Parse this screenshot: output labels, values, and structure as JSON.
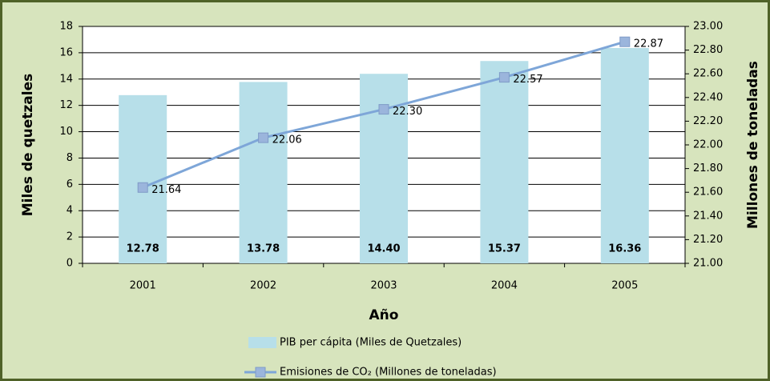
{
  "chart_data": {
    "type": "bar_line",
    "categories": [
      "2001",
      "2002",
      "2003",
      "2004",
      "2005"
    ],
    "series": [
      {
        "name": "PIB per cápita (Miles de Quetzales)",
        "type": "bar",
        "color": "#b7dfe9",
        "values": [
          12.78,
          13.78,
          14.4,
          15.37,
          16.36
        ],
        "value_labels": [
          "12.78",
          "13.78",
          "14.40",
          "15.37",
          "16.36"
        ]
      },
      {
        "name": "Emisiones de CO₂ (Millones de toneladas)",
        "type": "line",
        "axis": "y2",
        "color": "#7ea6d8",
        "marker_color": "#9bb5dc",
        "values": [
          21.64,
          22.06,
          22.3,
          22.57,
          22.87
        ],
        "value_labels": [
          "21.64",
          "22.06",
          "22.30",
          "22.57",
          "22.87"
        ]
      }
    ],
    "xlabel": "Año",
    "ylabel": "Miles de quetzales",
    "y2label": "Millones de toneladas",
    "ylim": [
      0,
      18
    ],
    "yticks": [
      0,
      2,
      4,
      6,
      8,
      10,
      12,
      14,
      16,
      18
    ],
    "y2lim": [
      21,
      23
    ],
    "y2ticks": [
      {
        "value": 21,
        "label": "21.00"
      },
      {
        "value": 21.2,
        "label": "21.20"
      },
      {
        "value": 21.4,
        "label": "21.40"
      },
      {
        "value": 21.6,
        "label": "21.60"
      },
      {
        "value": 21.8,
        "label": "21.80"
      },
      {
        "value": 22,
        "label": "22.00"
      },
      {
        "value": 22.2,
        "label": "22.20"
      },
      {
        "value": 22.4,
        "label": "22.40"
      },
      {
        "value": 22.6,
        "label": "22.60"
      },
      {
        "value": 22.8,
        "label": "22.80"
      },
      {
        "value": 23,
        "label": "23.00"
      }
    ],
    "grid": true,
    "legend": "bottom"
  }
}
